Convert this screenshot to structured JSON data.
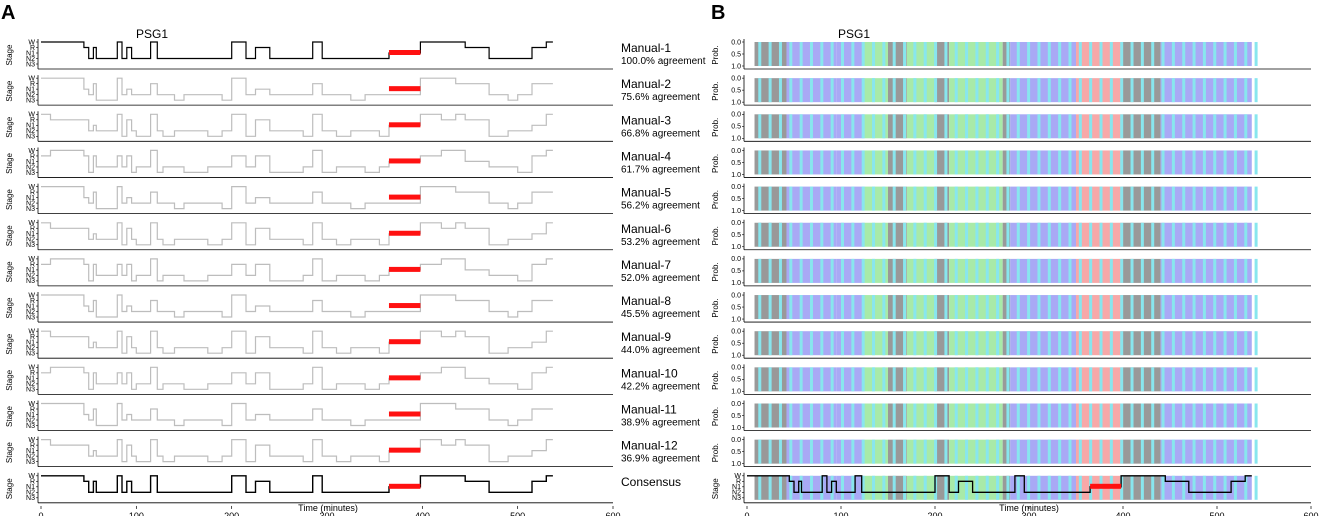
{
  "chart_data": [
    {
      "panel": "A",
      "type": "line",
      "title": "PSG1",
      "xlabel": "Time (minutes)",
      "ylabel": "Stage",
      "xlim": [
        0,
        600
      ],
      "xticks": [
        0,
        100,
        200,
        300,
        400,
        500,
        600
      ],
      "yticks": [
        "W",
        "R",
        "N1",
        "N2",
        "N3"
      ],
      "rows": [
        {
          "name": "Manual-1",
          "agreement": "100.0% agreement"
        },
        {
          "name": "Manual-2",
          "agreement": "75.6% agreement"
        },
        {
          "name": "Manual-3",
          "agreement": "66.8% agreement"
        },
        {
          "name": "Manual-4",
          "agreement": "61.7% agreement"
        },
        {
          "name": "Manual-5",
          "agreement": "56.2% agreement"
        },
        {
          "name": "Manual-6",
          "agreement": "53.2% agreement"
        },
        {
          "name": "Manual-7",
          "agreement": "52.0% agreement"
        },
        {
          "name": "Manual-8",
          "agreement": "45.5% agreement"
        },
        {
          "name": "Manual-9",
          "agreement": "44.0% agreement"
        },
        {
          "name": "Manual-10",
          "agreement": "42.2% agreement"
        },
        {
          "name": "Manual-11",
          "agreement": "38.9% agreement"
        },
        {
          "name": "Manual-12",
          "agreement": "36.9% agreement"
        },
        {
          "name": "Consensus",
          "agreement": ""
        }
      ],
      "hypnogram": [
        [
          0,
          10,
          0
        ],
        [
          10,
          45,
          0
        ],
        [
          45,
          50,
          1
        ],
        [
          50,
          55,
          3
        ],
        [
          55,
          58,
          1
        ],
        [
          58,
          80,
          3
        ],
        [
          80,
          85,
          0
        ],
        [
          85,
          90,
          3
        ],
        [
          90,
          95,
          1
        ],
        [
          95,
          100,
          3
        ],
        [
          100,
          115,
          3
        ],
        [
          115,
          122,
          0
        ],
        [
          122,
          128,
          3
        ],
        [
          128,
          140,
          3
        ],
        [
          140,
          150,
          3
        ],
        [
          150,
          175,
          3
        ],
        [
          175,
          190,
          3
        ],
        [
          190,
          200,
          3
        ],
        [
          200,
          215,
          0
        ],
        [
          215,
          225,
          3
        ],
        [
          225,
          240,
          1
        ],
        [
          240,
          275,
          3
        ],
        [
          275,
          285,
          3
        ],
        [
          285,
          295,
          0
        ],
        [
          295,
          310,
          3
        ],
        [
          310,
          325,
          3
        ],
        [
          325,
          340,
          3
        ],
        [
          340,
          355,
          3
        ],
        [
          355,
          365,
          3
        ],
        [
          365,
          398,
          2
        ],
        [
          398,
          420,
          0
        ],
        [
          420,
          435,
          0
        ],
        [
          435,
          445,
          0
        ],
        [
          445,
          470,
          1
        ],
        [
          470,
          490,
          3
        ],
        [
          490,
          500,
          3
        ],
        [
          500,
          515,
          3
        ],
        [
          515,
          530,
          1
        ],
        [
          530,
          537,
          0
        ]
      ],
      "rem_window": [
        365,
        398
      ]
    },
    {
      "panel": "B",
      "type": "area",
      "title": "PSG1",
      "xlabel": "Time (minutes)",
      "ylabel": "Prob.",
      "xlim": [
        0,
        600
      ],
      "xticks": [
        0,
        100,
        200,
        300,
        400,
        500,
        600
      ],
      "yticks": [
        "0.0",
        "0.5",
        "1.0"
      ],
      "consensus_yticks": [
        "W",
        "R",
        "N1",
        "N2",
        "N3"
      ],
      "consensus_ylabel": "Stage",
      "series": [
        {
          "name": "W",
          "color": "#999999"
        },
        {
          "name": "N1",
          "color": "#88e6ee"
        },
        {
          "name": "N2",
          "color": "#a9a9f5"
        },
        {
          "name": "N3",
          "color": "#a8eaa8"
        },
        {
          "name": "R",
          "color": "#f7a8a8"
        }
      ],
      "segments": [
        {
          "range": [
            8,
            42
          ],
          "state": "W"
        },
        {
          "range": [
            42,
            95
          ],
          "state": "N2"
        },
        {
          "range": [
            95,
            125
          ],
          "state": "N2"
        },
        {
          "range": [
            125,
            150
          ],
          "state": "N3"
        },
        {
          "range": [
            150,
            170
          ],
          "state": "W"
        },
        {
          "range": [
            170,
            200
          ],
          "state": "N3"
        },
        {
          "range": [
            200,
            215
          ],
          "state": "W"
        },
        {
          "range": [
            215,
            272
          ],
          "state": "N3"
        },
        {
          "range": [
            272,
            280
          ],
          "state": "W"
        },
        {
          "range": [
            280,
            310
          ],
          "state": "N2"
        },
        {
          "range": [
            310,
            350
          ],
          "state": "N2"
        },
        {
          "range": [
            350,
            400
          ],
          "state": "R"
        },
        {
          "range": [
            400,
            440
          ],
          "state": "W"
        },
        {
          "range": [
            440,
            537
          ],
          "state": "N2"
        }
      ]
    }
  ]
}
